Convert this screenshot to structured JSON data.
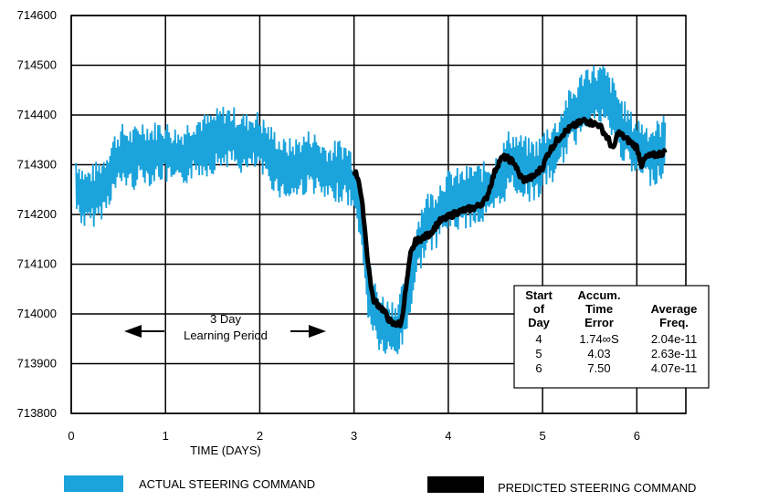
{
  "chart_data": {
    "type": "line",
    "title": "",
    "xlabel": "TIME (DAYS)",
    "ylabel": "",
    "xlim": [
      0,
      6.52
    ],
    "ylim": [
      713800,
      714600
    ],
    "x_ticks": [
      "0",
      "1",
      "2",
      "3",
      "4",
      "5",
      "6"
    ],
    "y_ticks": [
      "713800",
      "713900",
      "714000",
      "714100",
      "714200",
      "714300",
      "714400",
      "714500",
      "714600"
    ],
    "grid": true,
    "legend_position": "bottom",
    "series": [
      {
        "name": "ACTUAL STEERING COMMAND",
        "color": "#1ba3dc",
        "x": [
          0.05,
          0.15,
          0.25,
          0.35,
          0.45,
          0.55,
          0.65,
          0.75,
          0.85,
          0.95,
          1.05,
          1.15,
          1.25,
          1.35,
          1.45,
          1.55,
          1.65,
          1.75,
          1.85,
          1.95,
          2.05,
          2.15,
          2.25,
          2.35,
          2.45,
          2.55,
          2.65,
          2.75,
          2.85,
          2.95,
          3.05,
          3.15,
          3.25,
          3.35,
          3.45,
          3.55,
          3.65,
          3.75,
          3.85,
          3.95,
          4.05,
          4.15,
          4.25,
          4.35,
          4.45,
          4.55,
          4.65,
          4.75,
          4.85,
          4.95,
          5.05,
          5.15,
          5.25,
          5.35,
          5.45,
          5.55,
          5.65,
          5.75,
          5.85,
          5.95,
          6.05,
          6.15,
          6.25,
          6.3
        ],
        "y": [
          714260,
          714230,
          714240,
          714260,
          714300,
          714320,
          714310,
          714330,
          714320,
          714330,
          714320,
          714310,
          714330,
          714340,
          714340,
          714350,
          714360,
          714350,
          714340,
          714350,
          714330,
          714310,
          714290,
          714290,
          714300,
          714310,
          714290,
          714280,
          714290,
          714280,
          714230,
          714050,
          713990,
          713970,
          713970,
          714010,
          714120,
          714180,
          714190,
          714220,
          714230,
          714230,
          714240,
          714240,
          714250,
          714270,
          714310,
          714300,
          714290,
          714290,
          714320,
          714330,
          714380,
          714400,
          714440,
          714440,
          714440,
          714410,
          714370,
          714340,
          714330,
          714320,
          714330,
          714340
        ],
        "band_halfwidth": 65
      },
      {
        "name": "PREDICTED STEERING COMMAND",
        "color": "#000000",
        "x": [
          3.0,
          3.05,
          3.1,
          3.15,
          3.2,
          3.3,
          3.4,
          3.5,
          3.55,
          3.6,
          3.65,
          3.7,
          3.8,
          3.9,
          4.0,
          4.1,
          4.2,
          4.3,
          4.4,
          4.5,
          4.55,
          4.6,
          4.7,
          4.75,
          4.8,
          4.9,
          5.0,
          5.05,
          5.1,
          5.2,
          5.3,
          5.4,
          5.45,
          5.5,
          5.6,
          5.7,
          5.75,
          5.8,
          5.9,
          6.0,
          6.05,
          6.1,
          6.2,
          6.3
        ],
        "y": [
          714290,
          714270,
          714200,
          714100,
          714030,
          714010,
          713980,
          713980,
          714050,
          714120,
          714145,
          714150,
          714160,
          714185,
          714195,
          714205,
          714210,
          714215,
          714230,
          714290,
          714310,
          714315,
          714305,
          714280,
          714270,
          714275,
          714295,
          714320,
          714335,
          714360,
          714375,
          714385,
          714390,
          714385,
          714380,
          714350,
          714330,
          714365,
          714350,
          714335,
          714300,
          714315,
          714320,
          714325
        ]
      }
    ]
  },
  "annotation": {
    "line1": "3 Day",
    "line2": "Learning Period"
  },
  "table": {
    "headers": [
      [
        "Start",
        "of",
        "Day"
      ],
      [
        "Accum.",
        "Time",
        "Error"
      ],
      [
        "",
        "Average",
        "Freq."
      ]
    ],
    "rows": [
      [
        "4",
        "1.74∞S",
        "2.04e-11"
      ],
      [
        "5",
        "4.03",
        "2.63e-11"
      ],
      [
        "6",
        "7.50",
        "4.07e-11"
      ]
    ]
  },
  "legend": {
    "actual_label": "ACTUAL STEERING COMMAND",
    "predicted_label": "PREDICTED STEERING COMMAND"
  }
}
